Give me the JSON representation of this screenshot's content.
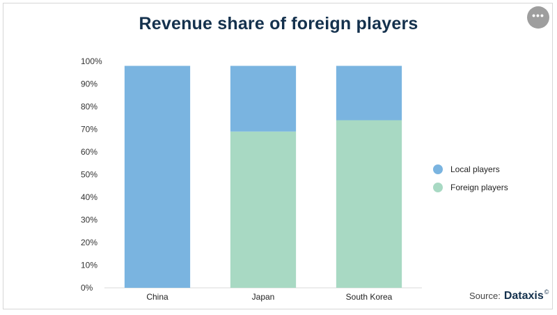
{
  "header": {
    "more_icon": "more-horizontal-icon"
  },
  "legend": {
    "items": [
      {
        "label": "Local players",
        "color": "#7ab4e0"
      },
      {
        "label": "Foreign players",
        "color": "#a8d9c3"
      }
    ]
  },
  "source": {
    "label": "Source:",
    "brand": "Dataxis",
    "mark": "©"
  },
  "chart_data": {
    "type": "bar",
    "stacked": true,
    "title": "Revenue share of foreign players",
    "categories": [
      "China",
      "Japan",
      "South Korea"
    ],
    "series": [
      {
        "name": "Foreign players",
        "color": "#a8d9c3",
        "values": [
          0,
          69,
          74
        ]
      },
      {
        "name": "Local players",
        "color": "#7ab4e0",
        "values": [
          98,
          29,
          24
        ]
      }
    ],
    "ylim": [
      0,
      100
    ],
    "yticks": [
      "0%",
      "10%",
      "20%",
      "30%",
      "40%",
      "50%",
      "60%",
      "70%",
      "80%",
      "90%",
      "100%"
    ],
    "xlabel": "",
    "ylabel": "",
    "grid": false,
    "legend_position": "right"
  }
}
